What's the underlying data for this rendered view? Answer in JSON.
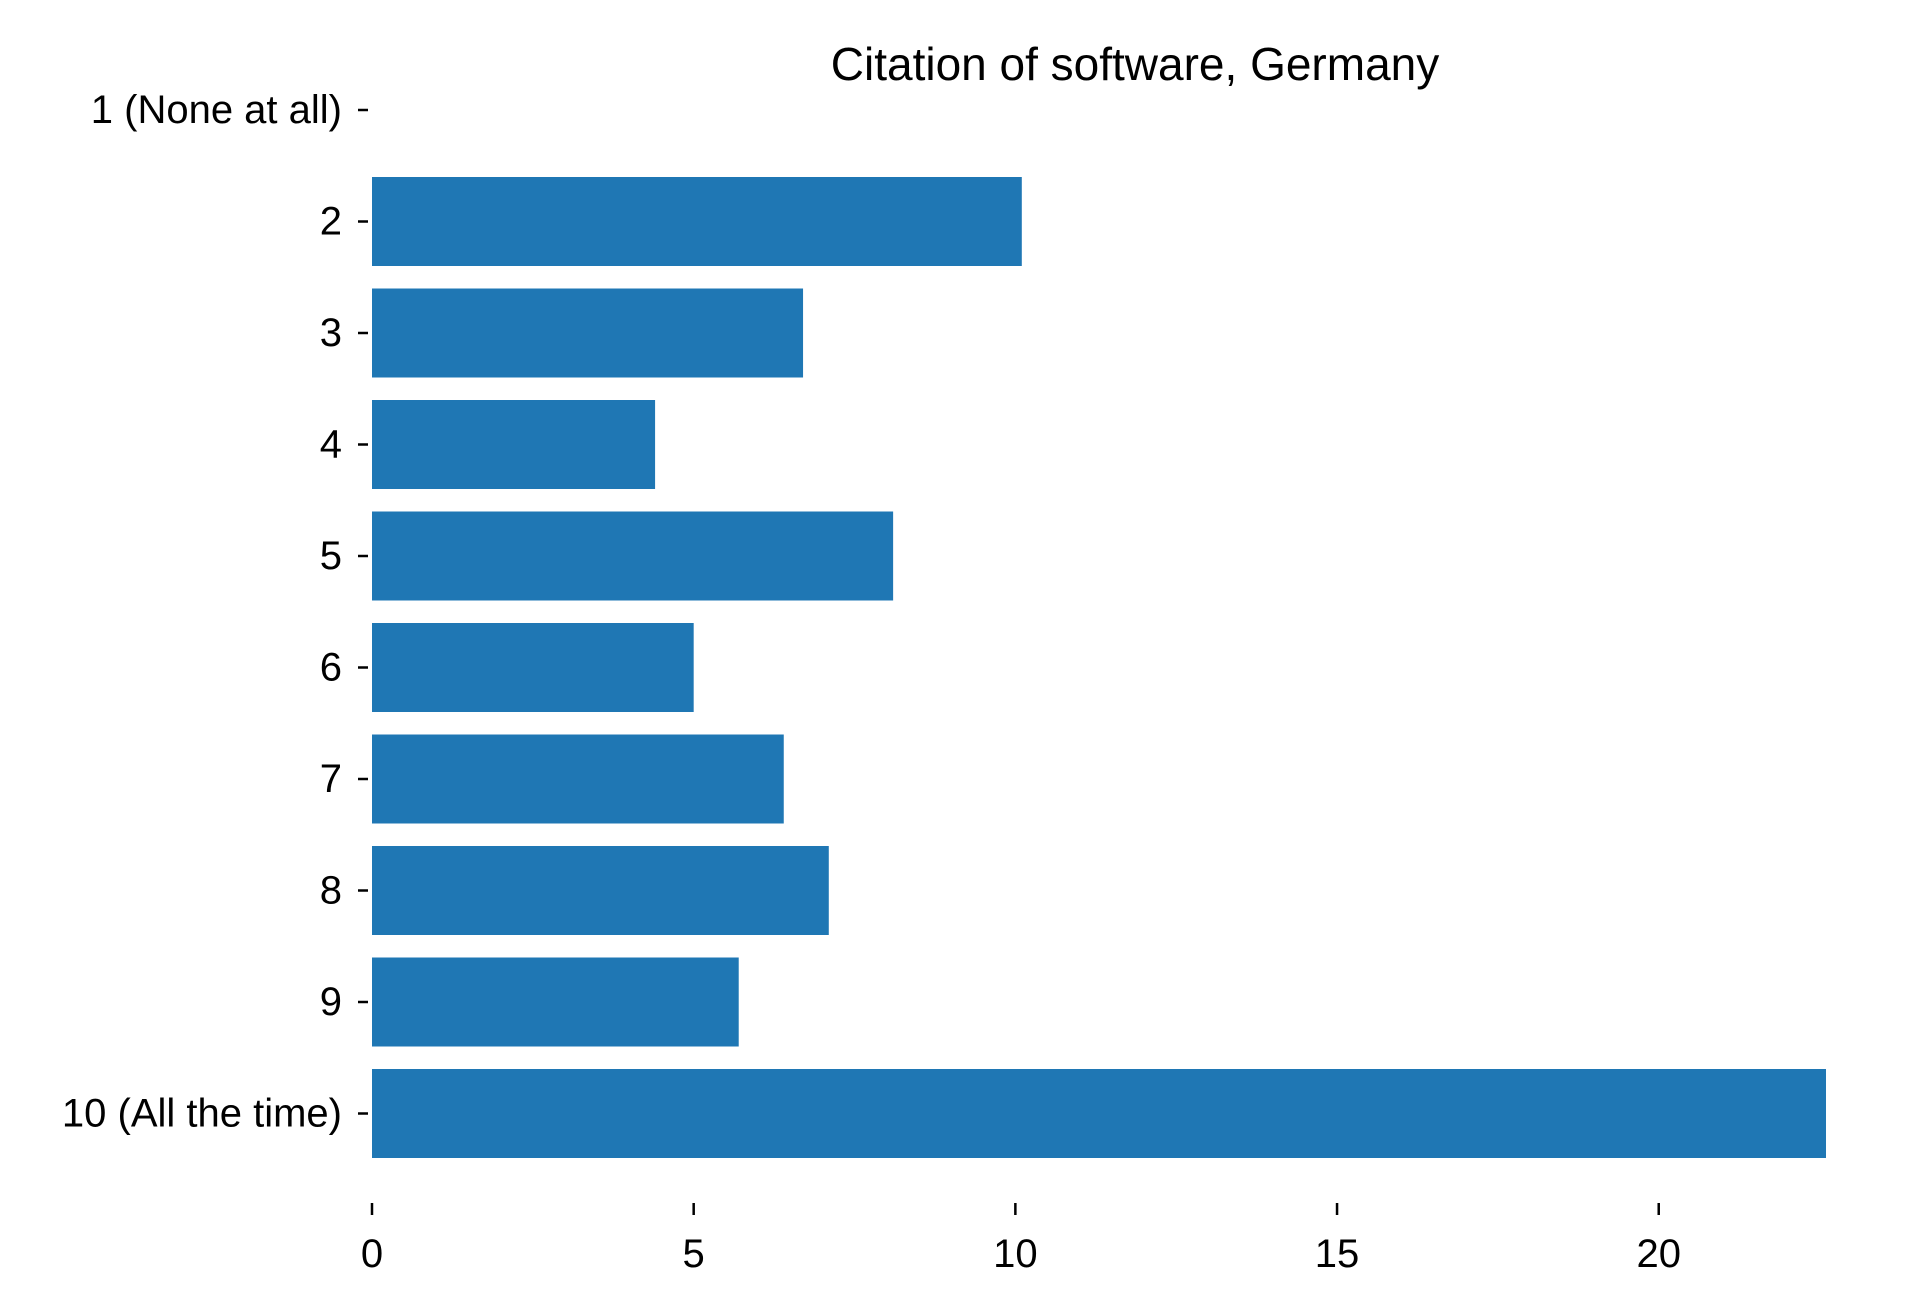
{
  "chart_data": {
    "type": "bar",
    "orientation": "horizontal",
    "title": "Citation of software, Germany",
    "xlabel": "",
    "ylabel": "",
    "categories": [
      "1 (None at all)",
      "2",
      "3",
      "4",
      "5",
      "6",
      "7",
      "8",
      "9",
      "10 (All the time)"
    ],
    "values": [
      0,
      10.1,
      6.7,
      4.4,
      8.1,
      5.0,
      6.4,
      7.1,
      5.7,
      22.6
    ],
    "xlim": [
      0,
      22.6
    ],
    "xticks": [
      0,
      5,
      10,
      15,
      20
    ],
    "bar_color": "#1f77b4",
    "grid": false,
    "legend": "none"
  }
}
